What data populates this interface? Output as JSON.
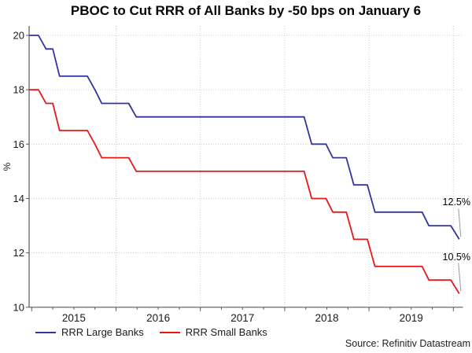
{
  "chart_data": {
    "type": "line",
    "title": "PBOC to Cut RRR of All Banks by -50 bps on January 6",
    "xlabel": "",
    "ylabel": "%",
    "x_tick_labels": [
      "2015",
      "2016",
      "2017",
      "2018",
      "2019"
    ],
    "y_ticks": [
      10,
      12,
      14,
      16,
      18,
      20
    ],
    "xlim": [
      2014.97,
      2020.12
    ],
    "ylim": [
      10,
      20.35
    ],
    "grid": "dotted, at every year boundary and every 2 units",
    "legend_position": "bottom-left",
    "series": [
      {
        "name": "RRR Large Banks",
        "color": "#34349C",
        "points": [
          [
            2014.97,
            20
          ],
          [
            2015.08,
            20
          ],
          [
            2015.17,
            19.5
          ],
          [
            2015.25,
            19.5
          ],
          [
            2015.33,
            18.5
          ],
          [
            2015.66,
            18.5
          ],
          [
            2015.75,
            18.0
          ],
          [
            2015.83,
            17.5
          ],
          [
            2016.15,
            17.5
          ],
          [
            2016.24,
            17.0
          ],
          [
            2018.23,
            17.0
          ],
          [
            2018.32,
            16.0
          ],
          [
            2018.49,
            16.0
          ],
          [
            2018.57,
            15.5
          ],
          [
            2018.73,
            15.5
          ],
          [
            2018.82,
            14.5
          ],
          [
            2018.98,
            14.5
          ],
          [
            2019.07,
            13.5
          ],
          [
            2019.63,
            13.5
          ],
          [
            2019.71,
            13.0
          ],
          [
            2019.97,
            13.0
          ],
          [
            2020.07,
            12.5
          ]
        ]
      },
      {
        "name": "RRR Small Banks",
        "color": "#E81818",
        "points": [
          [
            2014.97,
            18
          ],
          [
            2015.08,
            18
          ],
          [
            2015.17,
            17.5
          ],
          [
            2015.25,
            17.5
          ],
          [
            2015.33,
            16.5
          ],
          [
            2015.66,
            16.5
          ],
          [
            2015.75,
            16.0
          ],
          [
            2015.83,
            15.5
          ],
          [
            2016.15,
            15.5
          ],
          [
            2016.24,
            15.0
          ],
          [
            2018.23,
            15.0
          ],
          [
            2018.32,
            14.0
          ],
          [
            2018.49,
            14.0
          ],
          [
            2018.57,
            13.5
          ],
          [
            2018.73,
            13.5
          ],
          [
            2018.82,
            12.5
          ],
          [
            2018.98,
            12.5
          ],
          [
            2019.07,
            11.5
          ],
          [
            2019.63,
            11.5
          ],
          [
            2019.71,
            11.0
          ],
          [
            2019.97,
            11.0
          ],
          [
            2020.07,
            10.5
          ]
        ]
      }
    ],
    "annotations": [
      {
        "text": "12.5%",
        "series": "RRR Large Banks",
        "value": 12.5
      },
      {
        "text": "10.5%",
        "series": "RRR Small Banks",
        "value": 10.5
      }
    ]
  },
  "source": "Source: Refinitiv Datastream",
  "colors": {
    "grid": "#CCCCCC",
    "axis": "#595959",
    "tick_label": "#1A1A1A",
    "leader_line": "#999999"
  }
}
